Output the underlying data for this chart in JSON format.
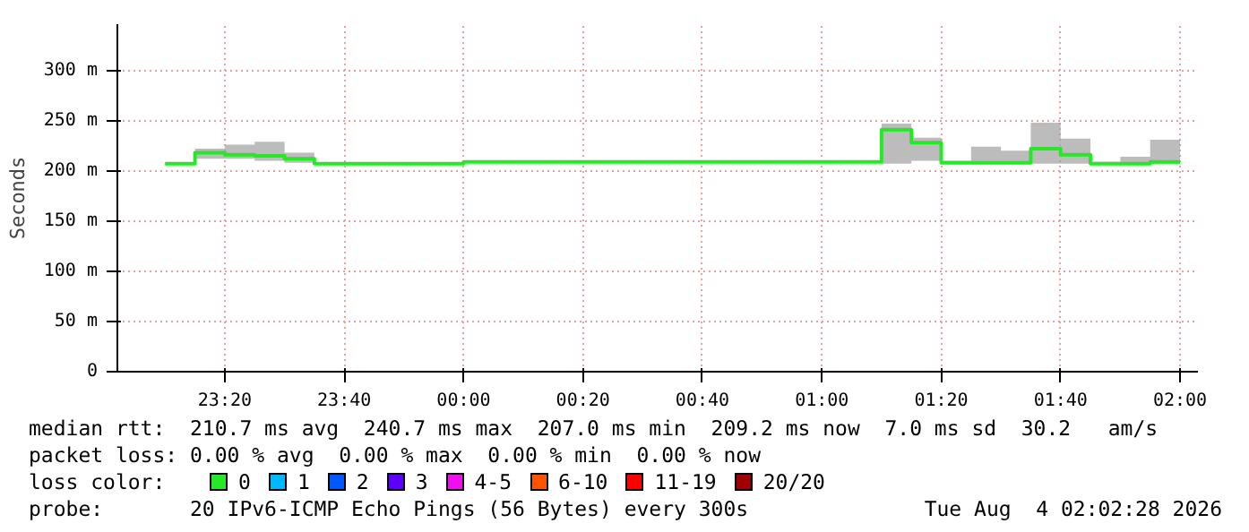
{
  "chart_data": {
    "type": "step",
    "ylabel": "Seconds",
    "legend_title": "loss color:",
    "legend": "bottom",
    "grid": true,
    "marker": "none",
    "line_style": "solid",
    "xlim": [
      "2026-08-03T23:02",
      "2026-08-04T02:03"
    ],
    "xticks": [
      {
        "value": "2026-08-03T23:20",
        "label": "23:20"
      },
      {
        "value": "2026-08-03T23:40",
        "label": "23:40"
      },
      {
        "value": "2026-08-04T00:00",
        "label": "00:00"
      },
      {
        "value": "2026-08-04T00:20",
        "label": "00:20"
      },
      {
        "value": "2026-08-04T00:40",
        "label": "00:40"
      },
      {
        "value": "2026-08-04T01:00",
        "label": "01:00"
      },
      {
        "value": "2026-08-04T01:20",
        "label": "01:20"
      },
      {
        "value": "2026-08-04T01:40",
        "label": "01:40"
      },
      {
        "value": "2026-08-04T02:00",
        "label": "02:00"
      }
    ],
    "ylim": [
      0,
      346
    ],
    "yticks": [
      0,
      {
        "value": 50,
        "label": "50 m"
      },
      {
        "value": 100,
        "label": "100 m"
      },
      {
        "value": 150,
        "label": "150 m"
      },
      {
        "value": 200,
        "label": "200 m"
      },
      {
        "value": 250,
        "label": "250 m"
      },
      {
        "value": 300,
        "label": "300 m"
      }
    ],
    "x": [
      "2026-08-03T23:10",
      "2026-08-03T23:15",
      "2026-08-03T23:20",
      "2026-08-03T23:25",
      "2026-08-03T23:30",
      "2026-08-03T23:35",
      "2026-08-03T23:40",
      "2026-08-03T23:45",
      "2026-08-03T23:50",
      "2026-08-03T23:55",
      "2026-08-04T00:00",
      "2026-08-04T00:05",
      "2026-08-04T00:10",
      "2026-08-04T00:15",
      "2026-08-04T00:20",
      "2026-08-04T00:25",
      "2026-08-04T00:30",
      "2026-08-04T00:35",
      "2026-08-04T00:40",
      "2026-08-04T00:45",
      "2026-08-04T00:50",
      "2026-08-04T00:55",
      "2026-08-04T01:00",
      "2026-08-04T01:05",
      "2026-08-04T01:10",
      "2026-08-04T01:15",
      "2026-08-04T01:20",
      "2026-08-04T01:25",
      "2026-08-04T01:30",
      "2026-08-04T01:35",
      "2026-08-04T01:40",
      "2026-08-04T01:45",
      "2026-08-04T01:50",
      "2026-08-04T01:55",
      "2026-08-04T02:00"
    ],
    "series": [
      {
        "name": "0",
        "color": "#26e826",
        "values": [
          207,
          207,
          218,
          216,
          215,
          212,
          207,
          207,
          207,
          207,
          207,
          209,
          209,
          209,
          209,
          209,
          209,
          209,
          209,
          209,
          209,
          209,
          209,
          209,
          209,
          241,
          228,
          208,
          208,
          208,
          222,
          216,
          207,
          207,
          209
        ],
        "lower": [
          206,
          206,
          212,
          212,
          210,
          208,
          206,
          206,
          206,
          206,
          206,
          208,
          208,
          208,
          208,
          208,
          208,
          208,
          208,
          208,
          208,
          208,
          208,
          208,
          208,
          207,
          210,
          207,
          207,
          207,
          207,
          207,
          206,
          206,
          207
        ],
        "upper": [
          208,
          208,
          222,
          226,
          229,
          218,
          208,
          208,
          208,
          208,
          208,
          210,
          210,
          210,
          210,
          210,
          210,
          210,
          210,
          210,
          210,
          210,
          210,
          210,
          210,
          247,
          233,
          210,
          224,
          220,
          248,
          232,
          209,
          214,
          231
        ]
      },
      {
        "name": "1",
        "color": "#00b8ff",
        "values": [
          null,
          null,
          null,
          null,
          null,
          null,
          null,
          null,
          null,
          null,
          null,
          null,
          null,
          null,
          null,
          null,
          null,
          null,
          null,
          null,
          null,
          null,
          null,
          null,
          null,
          null,
          null,
          null,
          null,
          null,
          null,
          null,
          null,
          null,
          null
        ]
      },
      {
        "name": "2",
        "color": "#0059ff",
        "values": [
          null,
          null,
          null,
          null,
          null,
          null,
          null,
          null,
          null,
          null,
          null,
          null,
          null,
          null,
          null,
          null,
          null,
          null,
          null,
          null,
          null,
          null,
          null,
          null,
          null,
          null,
          null,
          null,
          null,
          null,
          null,
          null,
          null,
          null,
          null
        ]
      },
      {
        "name": "3",
        "color": "#5e00ff",
        "values": [
          null,
          null,
          null,
          null,
          null,
          null,
          null,
          null,
          null,
          null,
          null,
          null,
          null,
          null,
          null,
          null,
          null,
          null,
          null,
          null,
          null,
          null,
          null,
          null,
          null,
          null,
          null,
          null,
          null,
          null,
          null,
          null,
          null,
          null,
          null
        ]
      },
      {
        "name": "4-5",
        "color": "#ee10ee",
        "values": [
          null,
          null,
          null,
          null,
          null,
          null,
          null,
          null,
          null,
          null,
          null,
          null,
          null,
          null,
          null,
          null,
          null,
          null,
          null,
          null,
          null,
          null,
          null,
          null,
          null,
          null,
          null,
          null,
          null,
          null,
          null,
          null,
          null,
          null,
          null
        ]
      },
      {
        "name": "6-10",
        "color": "#ff5500",
        "values": [
          null,
          null,
          null,
          null,
          null,
          null,
          null,
          null,
          null,
          null,
          null,
          null,
          null,
          null,
          null,
          null,
          null,
          null,
          null,
          null,
          null,
          null,
          null,
          null,
          null,
          null,
          null,
          null,
          null,
          null,
          null,
          null,
          null,
          null,
          null
        ]
      },
      {
        "name": "11-19",
        "color": "#ff0000",
        "values": [
          null,
          null,
          null,
          null,
          null,
          null,
          null,
          null,
          null,
          null,
          null,
          null,
          null,
          null,
          null,
          null,
          null,
          null,
          null,
          null,
          null,
          null,
          null,
          null,
          null,
          null,
          null,
          null,
          null,
          null,
          null,
          null,
          null,
          null,
          null
        ]
      },
      {
        "name": "20/20",
        "color": "#a00000",
        "values": [
          null,
          null,
          null,
          null,
          null,
          null,
          null,
          null,
          null,
          null,
          null,
          null,
          null,
          null,
          null,
          null,
          null,
          null,
          null,
          null,
          null,
          null,
          null,
          null,
          null,
          null,
          null,
          null,
          null,
          null,
          null,
          null,
          null,
          null,
          null
        ]
      }
    ],
    "annotations": [
      "median rtt:  210.7 ms avg  240.7 ms max  207.0 ms min  209.2 ms now  7.0 ms sd  30.2   am/s",
      "packet loss: 0.00 % avg  0.00 % max  0.00 % min  0.00 % now",
      "probe:       20 IPv6-ICMP Echo Pings (56 Bytes) every 300s",
      "Tue Aug  4 02:02:28 2026"
    ]
  }
}
